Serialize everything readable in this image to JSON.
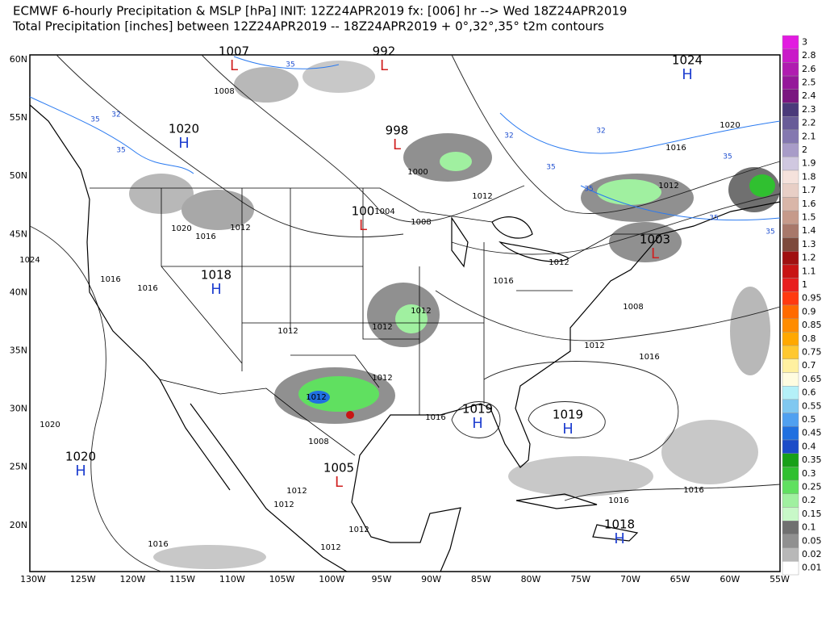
{
  "title_lines": [
    "ECMWF 6-hourly Precipitation & MSLP [hPa] INIT: 12Z24APR2019 fx: [006] hr --> Wed 18Z24APR2019",
    "Total Precipitation [inches] between 12Z24APR2019 -- 18Z24APR2019   + 0°,32°,35° t2m contours"
  ],
  "lat_labels": [
    "60N",
    "55N",
    "50N",
    "45N",
    "40N",
    "35N",
    "30N",
    "25N",
    "20N"
  ],
  "lon_labels": [
    "130W",
    "125W",
    "120W",
    "115W",
    "110W",
    "105W",
    "100W",
    "95W",
    "90W",
    "85W",
    "80W",
    "75W",
    "70W",
    "65W",
    "60W",
    "55W"
  ],
  "colorbar": {
    "levels": [
      {
        "label": "3",
        "color": "#e21be0"
      },
      {
        "label": "2.8",
        "color": "#c91ac8"
      },
      {
        "label": "2.6",
        "color": "#b01cb0"
      },
      {
        "label": "2.5",
        "color": "#95189a"
      },
      {
        "label": "2.4",
        "color": "#7a1680"
      },
      {
        "label": "2.3",
        "color": "#4a3a7a"
      },
      {
        "label": "2.2",
        "color": "#685c98"
      },
      {
        "label": "2.1",
        "color": "#8478b0"
      },
      {
        "label": "2",
        "color": "#a89cc8"
      },
      {
        "label": "1.9",
        "color": "#d0c8e0"
      },
      {
        "label": "1.8",
        "color": "#f5e2dc"
      },
      {
        "label": "1.7",
        "color": "#e8cfc6"
      },
      {
        "label": "1.6",
        "color": "#d9b6a8"
      },
      {
        "label": "1.5",
        "color": "#c69a8a"
      },
      {
        "label": "1.4",
        "color": "#a8786a"
      },
      {
        "label": "1.3",
        "color": "#7d4a3c"
      },
      {
        "label": "1.2",
        "color": "#a01010"
      },
      {
        "label": "1.1",
        "color": "#c81414"
      },
      {
        "label": "1",
        "color": "#e81e1e"
      },
      {
        "label": "0.95",
        "color": "#ff3a10"
      },
      {
        "label": "0.9",
        "color": "#ff6a00"
      },
      {
        "label": "0.85",
        "color": "#ff8c00"
      },
      {
        "label": "0.8",
        "color": "#ffa800"
      },
      {
        "label": "0.75",
        "color": "#ffc830"
      },
      {
        "label": "0.7",
        "color": "#fff0a0"
      },
      {
        "label": "0.65",
        "color": "#fffce0"
      },
      {
        "label": "0.6",
        "color": "#b4f0f8"
      },
      {
        "label": "0.55",
        "color": "#80c8f0"
      },
      {
        "label": "0.5",
        "color": "#50a0f0"
      },
      {
        "label": "0.45",
        "color": "#2070e0"
      },
      {
        "label": "0.4",
        "color": "#1c4cc8"
      },
      {
        "label": "0.35",
        "color": "#18a018"
      },
      {
        "label": "0.3",
        "color": "#30c030"
      },
      {
        "label": "0.25",
        "color": "#60e060"
      },
      {
        "label": "0.2",
        "color": "#a0f0a0"
      },
      {
        "label": "0.15",
        "color": "#c8f8c8"
      },
      {
        "label": "0.1",
        "color": "#707070"
      },
      {
        "label": "0.05",
        "color": "#909090"
      },
      {
        "label": "0.02",
        "color": "#b8b8b8"
      },
      {
        "label": "0.01",
        "color": "#ffffff"
      }
    ]
  },
  "pressure_centers": [
    {
      "letter": "L",
      "value": "1007",
      "color": "#d02020"
    },
    {
      "letter": "L",
      "value": "992",
      "color": "#d02020"
    },
    {
      "letter": "H",
      "value": "1024",
      "color": "#2040d0"
    },
    {
      "letter": "H",
      "value": "1020",
      "color": "#2040d0"
    },
    {
      "letter": "L",
      "value": "998",
      "color": "#d02020"
    },
    {
      "letter": "L",
      "value": "100",
      "color": "#d02020"
    },
    {
      "letter": "H",
      "value": "1018",
      "color": "#2040d0"
    },
    {
      "letter": "L",
      "value": "1003",
      "color": "#d02020"
    },
    {
      "letter": "H",
      "value": "1019",
      "color": "#2040d0"
    },
    {
      "letter": "H",
      "value": "1019",
      "color": "#2040d0"
    },
    {
      "letter": "H",
      "value": "1020",
      "color": "#2040d0"
    },
    {
      "letter": "L",
      "value": "1005",
      "color": "#d02020"
    },
    {
      "letter": "H",
      "value": "1018",
      "color": "#2040d0"
    }
  ],
  "contour_labels": [
    "1008",
    "1000",
    "1004",
    "1008",
    "1012",
    "1012",
    "1016",
    "1020",
    "1024",
    "1016",
    "1016",
    "1012",
    "1020",
    "1016",
    "1012",
    "1016",
    "1008",
    "1012",
    "1016",
    "1012",
    "1012",
    "1012",
    "1012",
    "1012",
    "1016",
    "1008",
    "1020",
    "1016",
    "1012",
    "1012",
    "1012",
    "1012",
    "1016",
    "1016"
  ],
  "temperature_labels": [
    "35",
    "35",
    "35",
    "35",
    "35",
    "35",
    "35",
    "35",
    "32",
    "32",
    "32"
  ],
  "temperature_label_color": "#2050d0"
}
